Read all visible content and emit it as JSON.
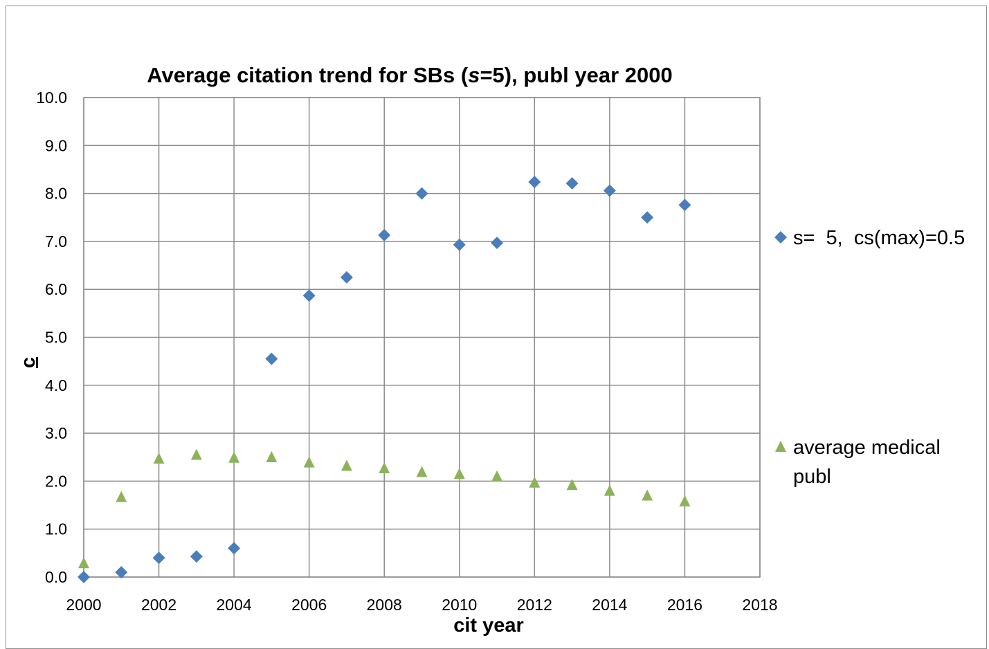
{
  "chart_data": {
    "type": "scatter",
    "title_parts": [
      "Average citation trend for SBs (",
      "s",
      "=5), publ year 2000"
    ],
    "xlabel": "cit year",
    "ylabel": "c",
    "xlim": [
      2000,
      2018
    ],
    "ylim": [
      0,
      10
    ],
    "x_ticks": [
      "2000",
      "2002",
      "2004",
      "2006",
      "2008",
      "2010",
      "2012",
      "2014",
      "2016",
      "2018"
    ],
    "y_ticks": [
      "0.0",
      "1.0",
      "2.0",
      "3.0",
      "4.0",
      "5.0",
      "6.0",
      "7.0",
      "8.0",
      "9.0",
      "10.0"
    ],
    "grid": true,
    "legend_position": "right",
    "series": [
      {
        "name": "s=  5,  cs(max)=0.5",
        "marker": "diamond",
        "color": "#4a7ebb",
        "x": [
          2000,
          2001,
          2002,
          2003,
          2004,
          2005,
          2006,
          2007,
          2008,
          2009,
          2010,
          2011,
          2012,
          2013,
          2014,
          2015,
          2016
        ],
        "y": [
          0.0,
          0.1,
          0.4,
          0.43,
          0.6,
          4.55,
          5.87,
          6.25,
          7.13,
          8.0,
          6.93,
          6.97,
          8.24,
          8.21,
          8.06,
          7.5,
          7.76
        ]
      },
      {
        "name_lines": [
          "average medical",
          "publ"
        ],
        "marker": "triangle",
        "color": "#8db35a",
        "x": [
          2000,
          2001,
          2002,
          2003,
          2004,
          2005,
          2006,
          2007,
          2008,
          2009,
          2010,
          2011,
          2012,
          2013,
          2014,
          2015,
          2016
        ],
        "y": [
          0.3,
          1.68,
          2.48,
          2.56,
          2.5,
          2.51,
          2.4,
          2.33,
          2.28,
          2.2,
          2.16,
          2.11,
          1.98,
          1.93,
          1.81,
          1.71,
          1.59
        ]
      }
    ]
  }
}
